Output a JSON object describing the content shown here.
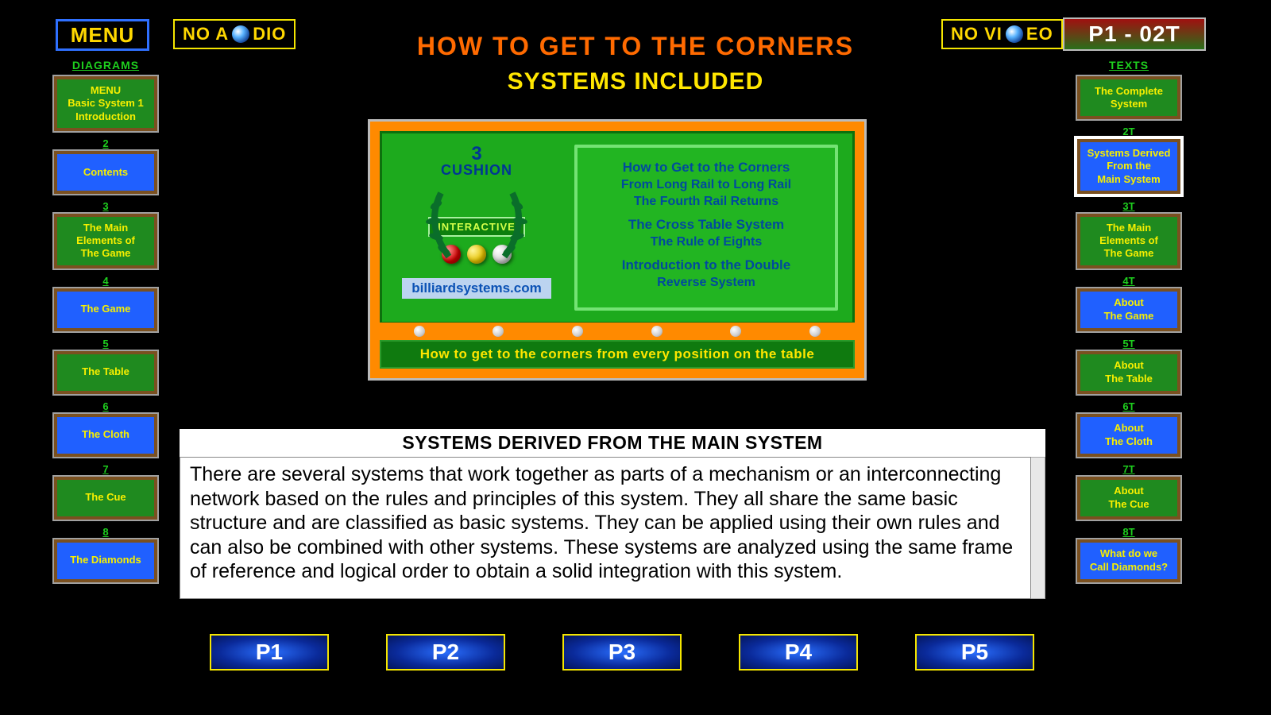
{
  "menu_label": "MENU",
  "no_audio": "NO AUDIO",
  "no_video": "NO VIDEO",
  "page_code": "P1 - 02T",
  "title_line1": "HOW TO GET TO THE CORNERS",
  "title_line2": "SYSTEMS INCLUDED",
  "colors": {
    "bg": "#000000",
    "accent_orange": "#ff6a00",
    "accent_yellow": "#ffe600",
    "card_green": "#1f8a1f",
    "card_blue": "#2060ff",
    "card_text": "#f7ef00",
    "num_green": "#1ecf1e",
    "chalk_frame": "#ff8a00",
    "chalk_bg": "#1daa1d",
    "chalk_panel": "#22b522",
    "site_chip_bg": "#bcd4f0",
    "site_chip_fg": "#0b52b5"
  },
  "left_col": {
    "header": "DIAGRAMS",
    "items": [
      {
        "num": "",
        "label": "MENU\nBasic System 1\nIntroduction",
        "style": "green"
      },
      {
        "num": "2",
        "label": "Contents",
        "style": "blue"
      },
      {
        "num": "3",
        "label": "The Main\nElements of\nThe Game",
        "style": "green"
      },
      {
        "num": "4",
        "label": "The Game",
        "style": "blue"
      },
      {
        "num": "5",
        "label": "The Table",
        "style": "green"
      },
      {
        "num": "6",
        "label": "The Cloth",
        "style": "blue"
      },
      {
        "num": "7",
        "label": "The Cue",
        "style": "green"
      },
      {
        "num": "8",
        "label": "The Diamonds",
        "style": "blue"
      }
    ]
  },
  "right_col": {
    "header": "TEXTS",
    "items": [
      {
        "num": "",
        "label": "The Complete\nSystem",
        "style": "green"
      },
      {
        "num": "2T",
        "label": "Systems Derived\nFrom the\nMain System",
        "style": "blue",
        "current": true
      },
      {
        "num": "3T",
        "label": "The Main\nElements of\nThe Game",
        "style": "green"
      },
      {
        "num": "4T",
        "label": "About\nThe Game",
        "style": "blue"
      },
      {
        "num": "5T",
        "label": "About\nThe Table",
        "style": "green"
      },
      {
        "num": "6T",
        "label": "About\nThe Cloth",
        "style": "blue"
      },
      {
        "num": "7T",
        "label": "About\nThe Cue",
        "style": "green"
      },
      {
        "num": "8T",
        "label": "What do we\nCall Diamonds?",
        "style": "blue"
      }
    ]
  },
  "chalkboard": {
    "big_num": "3",
    "cushion": "CUSHION",
    "interactive": "INTERACTIVE",
    "site": "billiardsystems.com",
    "systems_groups": [
      [
        "How to Get to the Corners",
        "From Long Rail to Long Rail",
        "The Fourth Rail Returns"
      ],
      [
        "The Cross Table System",
        "The Rule of Eights"
      ],
      [
        "Introduction to the Double",
        "Reverse System"
      ]
    ],
    "footer": "How to get to the corners from every position on the table"
  },
  "text_panel": {
    "title": "SYSTEMS DERIVED FROM THE MAIN SYSTEM",
    "body": "There are several systems that work together as parts of a mechanism or an interconnecting network based on the rules and principles of this system. They all share the same basic structure and are classified as basic systems. They can be applied using their own rules and can also be combined with other systems. These systems are analyzed using the same frame of reference and logical order to obtain a solid integration with this system."
  },
  "page_buttons": [
    "P1",
    "P2",
    "P3",
    "P4",
    "P5"
  ]
}
